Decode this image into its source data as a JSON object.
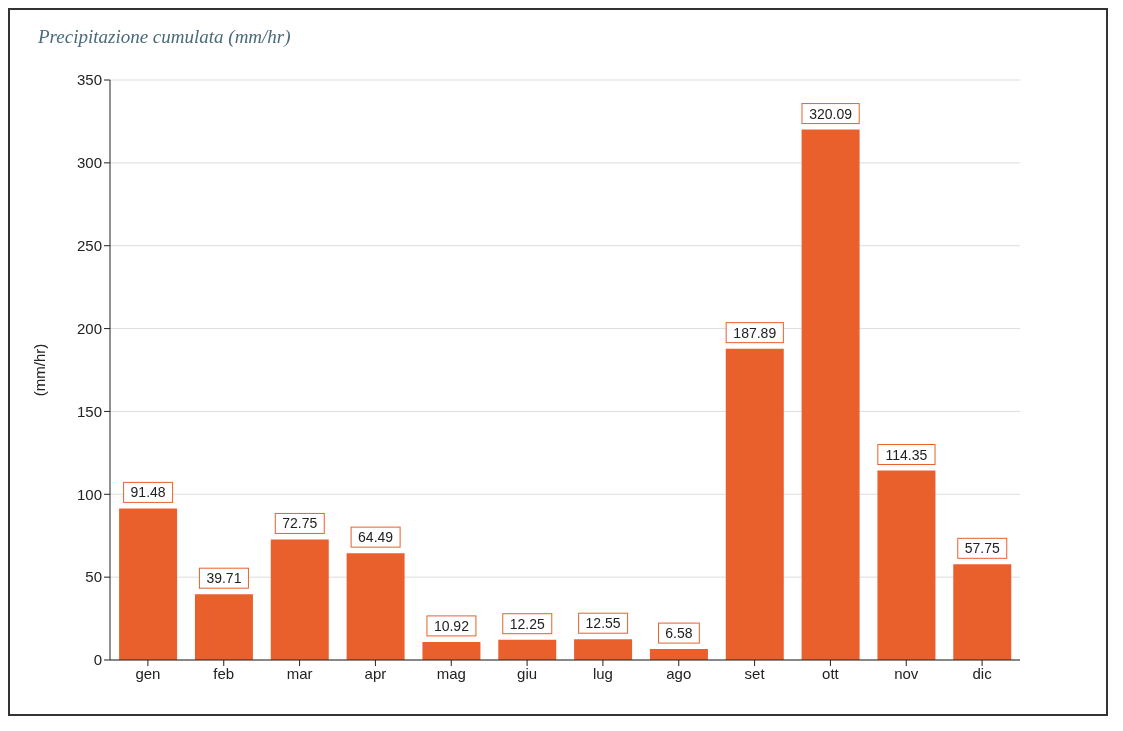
{
  "chart_data": {
    "type": "bar",
    "title": "Precipitazione cumulata (mm/hr)",
    "ylabel": "(mm/hr)",
    "categories": [
      "gen",
      "feb",
      "mar",
      "apr",
      "mag",
      "giu",
      "lug",
      "ago",
      "set",
      "ott",
      "nov",
      "dic"
    ],
    "values": [
      91.48,
      39.71,
      72.75,
      64.49,
      10.92,
      12.25,
      12.55,
      6.58,
      187.89,
      320.09,
      114.35,
      57.75
    ],
    "color": "#e9602d",
    "ylim": [
      0,
      350
    ],
    "yticks": [
      0,
      50,
      100,
      150,
      200,
      250,
      300,
      350
    ],
    "grid": "y",
    "data_labels": true
  }
}
